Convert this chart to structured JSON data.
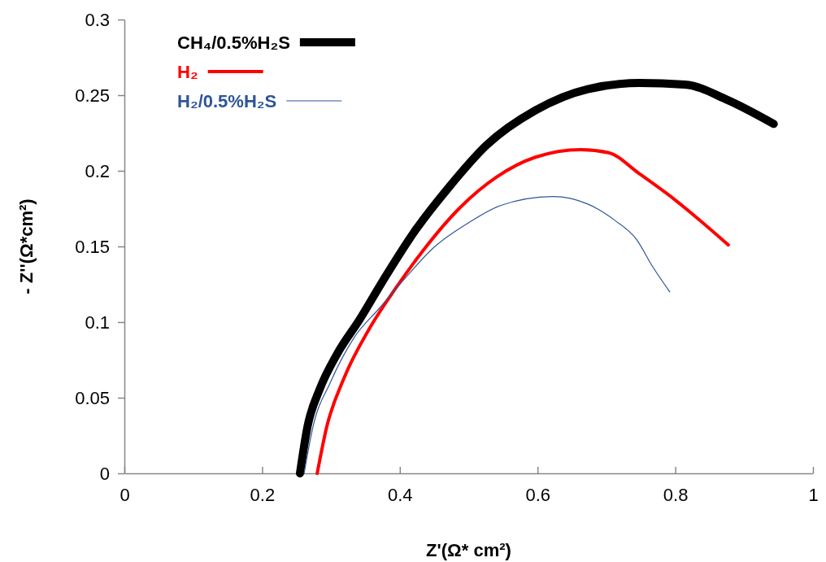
{
  "chart_data": {
    "type": "line",
    "xlabel": "Z'(Ω* cm²)",
    "ylabel": "- Z''(Ω*cm²)",
    "xlim": [
      0,
      1
    ],
    "xticks": [
      0,
      0.2,
      0.4,
      0.6,
      0.8,
      1
    ],
    "ylim": [
      0,
      0.3
    ],
    "yticks": [
      0,
      0.05,
      0.1,
      0.15,
      0.2,
      0.25,
      0.3
    ],
    "grid": false,
    "legend": "top left",
    "marker": "none",
    "line_style": "solid",
    "series": [
      {
        "name": "CH₄/0.5%H₂S",
        "color": "#000000",
        "x": [
          0.255,
          0.266,
          0.284,
          0.309,
          0.342,
          0.375,
          0.42,
          0.471,
          0.526,
          0.597,
          0.673,
          0.748,
          0.814,
          0.875,
          0.943
        ],
        "values": [
          0,
          0.031,
          0.056,
          0.079,
          0.102,
          0.127,
          0.159,
          0.189,
          0.217,
          0.24,
          0.254,
          0.258,
          0.257,
          0.247,
          0.231
        ]
      },
      {
        "name": "H₂",
        "color": "#ff0000",
        "x": [
          0.28,
          0.294,
          0.319,
          0.355,
          0.395,
          0.435,
          0.486,
          0.541,
          0.597,
          0.663,
          0.703,
          0.748,
          0.799,
          0.839,
          0.877
        ],
        "values": [
          0,
          0.031,
          0.063,
          0.095,
          0.123,
          0.148,
          0.175,
          0.196,
          0.209,
          0.214,
          0.212,
          0.198,
          0.181,
          0.166,
          0.151
        ]
      },
      {
        "name": "H₂/0.5%H₂S",
        "color": "#2f5597",
        "x": [
          0.261,
          0.274,
          0.299,
          0.334,
          0.37,
          0.4,
          0.451,
          0.501,
          0.546,
          0.622,
          0.673,
          0.713,
          0.743,
          0.768,
          0.792
        ],
        "values": [
          0,
          0.031,
          0.06,
          0.09,
          0.109,
          0.125,
          0.15,
          0.166,
          0.177,
          0.183,
          0.178,
          0.167,
          0.155,
          0.136,
          0.12
        ]
      }
    ]
  }
}
